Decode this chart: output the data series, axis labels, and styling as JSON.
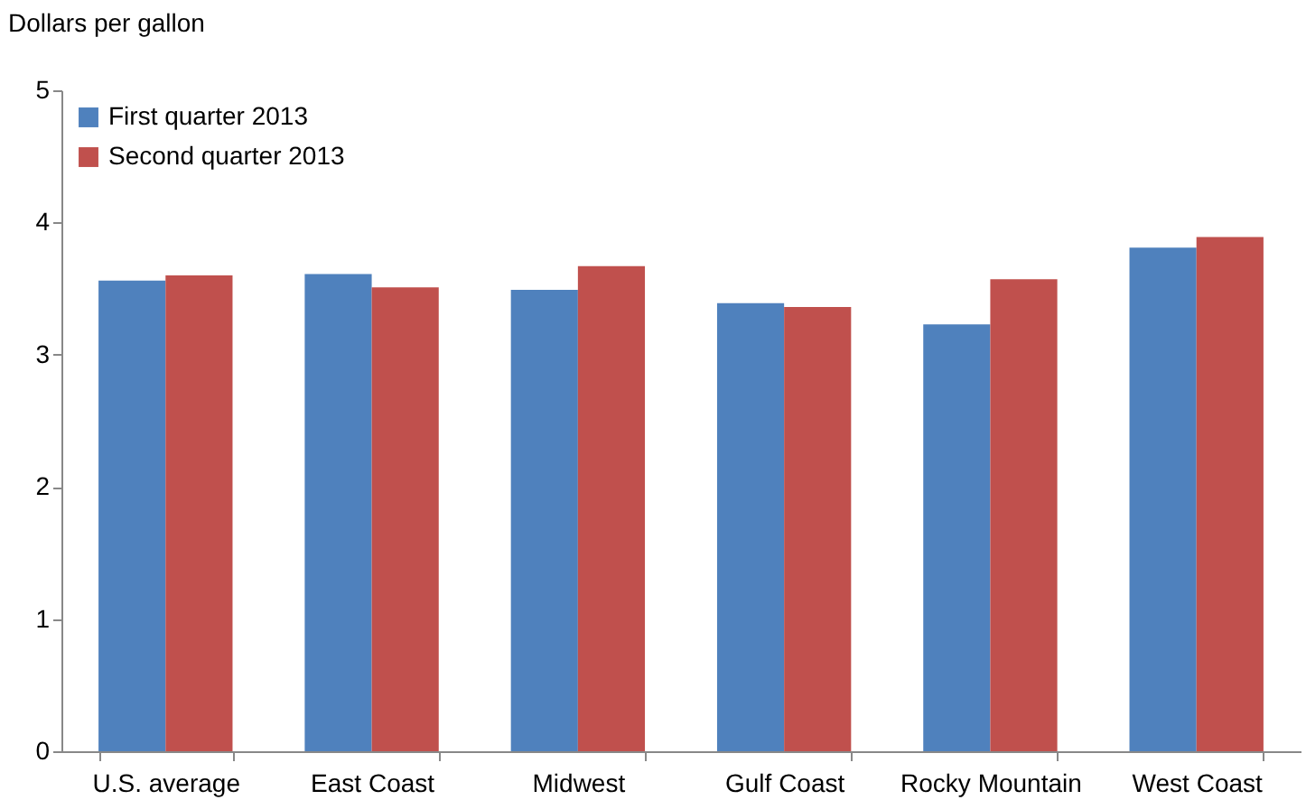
{
  "chart_data": {
    "type": "bar",
    "ylabel": "Dollars per gallon",
    "categories": [
      "U.S. average",
      "East Coast",
      "Midwest",
      "Gulf Coast",
      "Rocky Mountain",
      "West Coast"
    ],
    "series": [
      {
        "name": "First quarter 2013",
        "color": "#4f81bd",
        "values": [
          3.56,
          3.61,
          3.49,
          3.39,
          3.23,
          3.81
        ]
      },
      {
        "name": "Second quarter 2013",
        "color": "#c0504d",
        "values": [
          3.6,
          3.51,
          3.67,
          3.36,
          3.57,
          3.89
        ]
      }
    ],
    "ylim": [
      0,
      5
    ],
    "yticks": [
      0,
      1,
      2,
      3,
      4,
      5
    ],
    "grid": false,
    "legend": "top left"
  }
}
